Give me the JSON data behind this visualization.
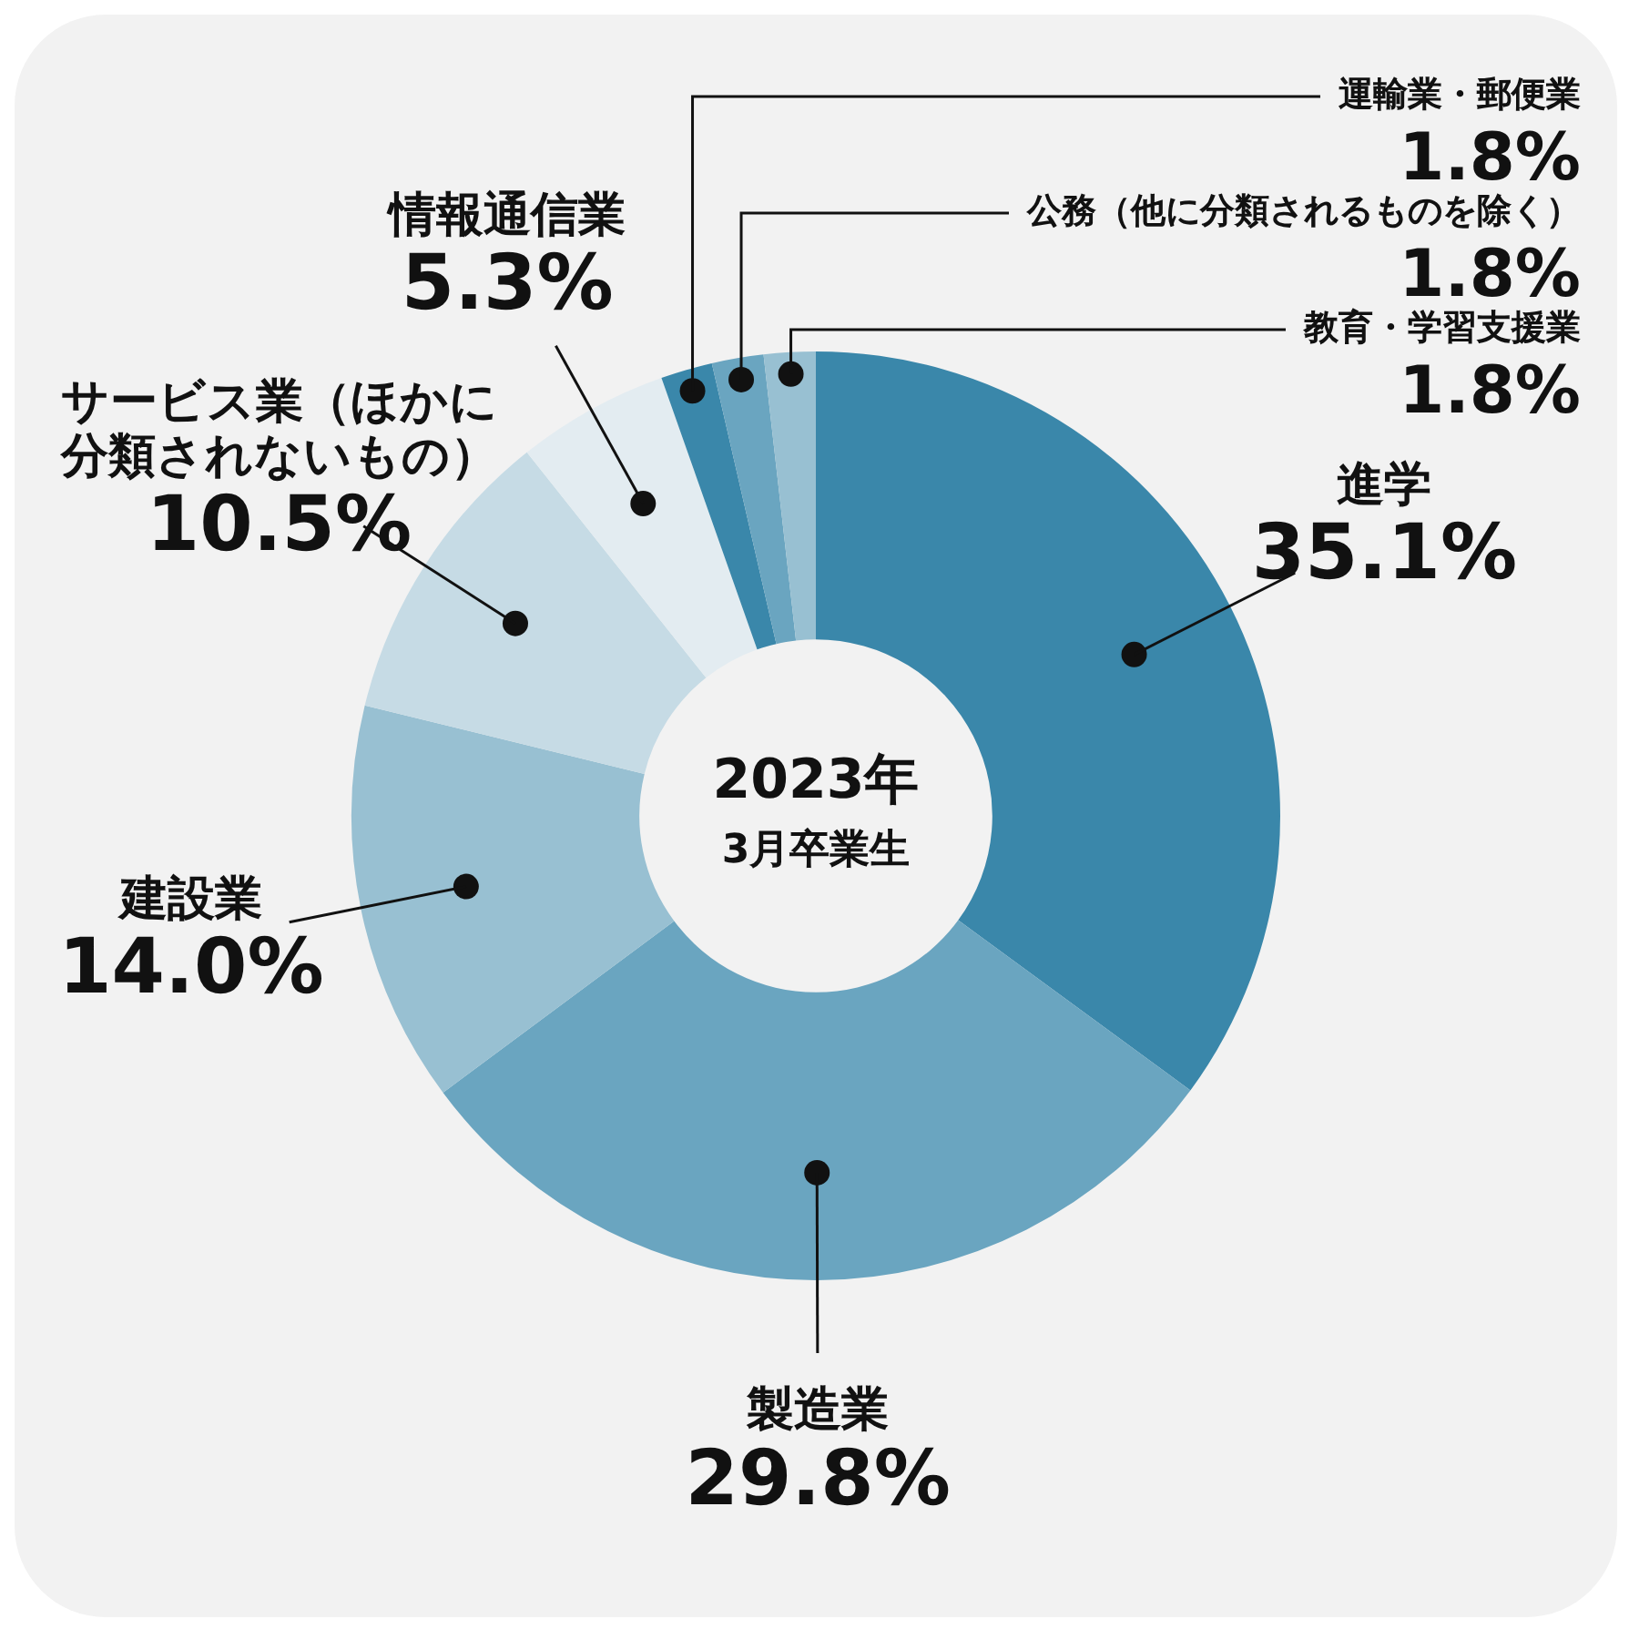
{
  "chart_data": {
    "type": "donut",
    "categories": [
      "進学",
      "製造業",
      "建設業",
      "サービス業（ほかに分類されないもの）",
      "情報通信業",
      "運輸業・郵便業",
      "公務（他に分類されるものを除く）",
      "教育・学習支援業"
    ],
    "values": [
      35.1,
      29.8,
      14.0,
      10.5,
      5.3,
      1.8,
      1.8,
      1.8
    ],
    "value_labels": [
      "35.1%",
      "29.8%",
      "14.0%",
      "10.5%",
      "5.3%",
      "1.8%",
      "1.8%",
      "1.8%"
    ],
    "colors": [
      "#3a87aa",
      "#6aa5c0",
      "#98c0d2",
      "#c6dbe5",
      "#e3ecf1",
      "#3a87aa",
      "#6aa5c0",
      "#98c0d2"
    ],
    "annotations": [
      "2023年",
      "3月卒業生"
    ],
    "legend": false
  }
}
